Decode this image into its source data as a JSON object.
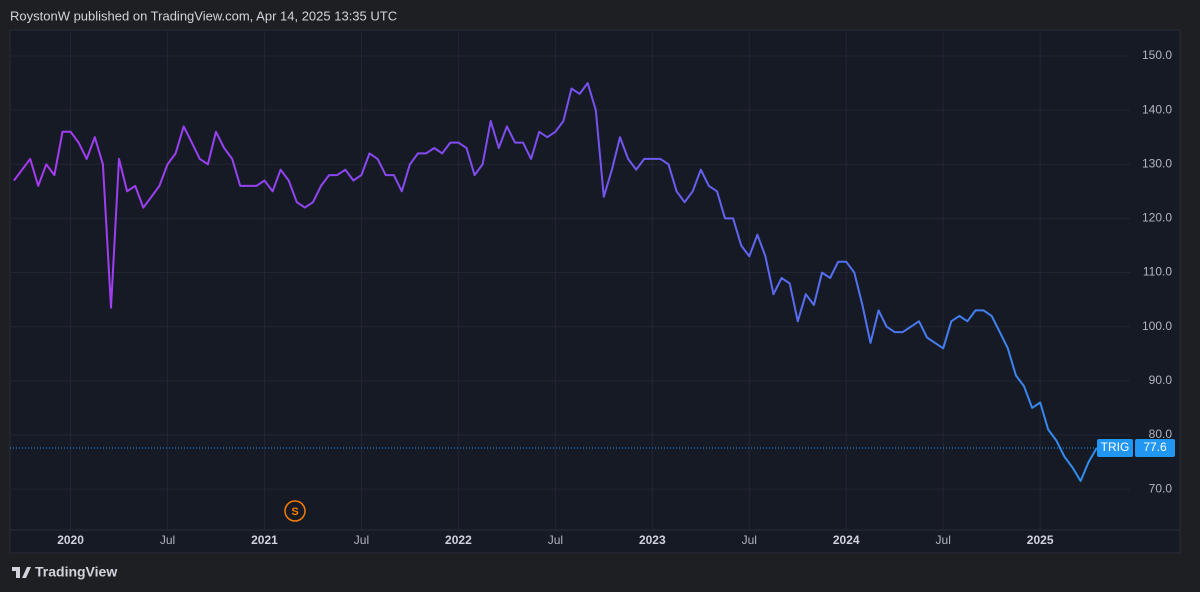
{
  "header": {
    "text": "RoystonW published on TradingView.com, Apr 14, 2025 13:35 UTC"
  },
  "footer": {
    "brand": "TradingView"
  },
  "event_marker": "S",
  "chart_data": {
    "type": "line",
    "categories": [
      null,
      null,
      null,
      null,
      null,
      null,
      null,
      "2020",
      null,
      null,
      null,
      null,
      null,
      null,
      null,
      null,
      null,
      null,
      null,
      "Jul",
      null,
      null,
      null,
      null,
      null,
      null,
      null,
      null,
      null,
      null,
      null,
      "2021",
      null,
      null,
      null,
      null,
      null,
      null,
      null,
      null,
      null,
      null,
      null,
      "Jul",
      null,
      null,
      null,
      null,
      null,
      null,
      null,
      null,
      null,
      null,
      null,
      "2022",
      null,
      null,
      null,
      null,
      null,
      null,
      null,
      null,
      null,
      null,
      null,
      "Jul",
      null,
      null,
      null,
      null,
      null,
      null,
      null,
      null,
      null,
      null,
      null,
      "2023",
      null,
      null,
      null,
      null,
      null,
      null,
      null,
      null,
      null,
      null,
      null,
      "Jul",
      null,
      null,
      null,
      null,
      null,
      null,
      null,
      null,
      null,
      null,
      null,
      "2024",
      null,
      null,
      null,
      null,
      null,
      null,
      null,
      null,
      null,
      null,
      null,
      "Jul",
      null,
      null,
      null,
      null,
      null,
      null,
      null,
      null,
      null,
      null,
      null,
      "2025",
      null,
      null,
      null,
      null,
      null,
      null,
      null
    ],
    "series": [
      {
        "name": "TRIG",
        "color": "#2196f3",
        "gradient": [
          "#a73af2",
          "#7a4ff0",
          "#2f8ff0"
        ],
        "values": [
          127,
          129,
          131,
          126,
          130,
          128,
          136,
          136,
          134,
          131,
          135,
          130,
          103.5,
          131,
          125,
          126,
          122,
          124,
          126,
          130,
          132,
          137,
          134,
          131,
          130,
          136,
          133,
          131,
          126,
          126,
          126,
          127,
          125,
          129,
          127,
          123,
          122,
          123,
          126,
          128,
          128,
          129,
          127,
          128,
          132,
          131,
          128,
          128,
          125,
          130,
          132,
          132,
          133,
          132,
          134,
          134,
          133,
          128,
          130,
          138,
          133,
          137,
          134,
          134,
          131,
          136,
          135,
          136,
          138,
          144,
          143,
          145,
          140,
          124,
          129,
          135,
          131,
          129,
          131,
          131,
          131,
          130,
          125,
          123,
          125,
          129,
          126,
          125,
          120,
          120,
          115,
          113,
          117,
          113,
          106,
          109,
          108,
          101,
          106,
          104,
          110,
          109,
          112,
          112,
          110,
          104,
          97,
          103,
          100,
          99,
          99,
          100,
          101,
          98,
          97,
          96,
          101,
          102,
          101,
          103,
          103,
          102,
          99,
          96,
          91,
          89,
          85,
          86,
          81,
          79,
          76,
          74,
          71.5,
          75,
          77.6
        ]
      }
    ],
    "ylim": [
      58.2,
      154.8
    ],
    "yticks": [
      {
        "value": 70,
        "label": "70.0"
      },
      {
        "value": 80,
        "label": "80.0"
      },
      {
        "value": 90,
        "label": "90.0"
      },
      {
        "value": 100,
        "label": "100.0"
      },
      {
        "value": 110,
        "label": "110.0"
      },
      {
        "value": 120,
        "label": "120.0"
      },
      {
        "value": 130,
        "label": "130.0"
      },
      {
        "value": 140,
        "label": "140.0"
      },
      {
        "value": 150,
        "label": "150.0"
      }
    ],
    "grid": true
  }
}
